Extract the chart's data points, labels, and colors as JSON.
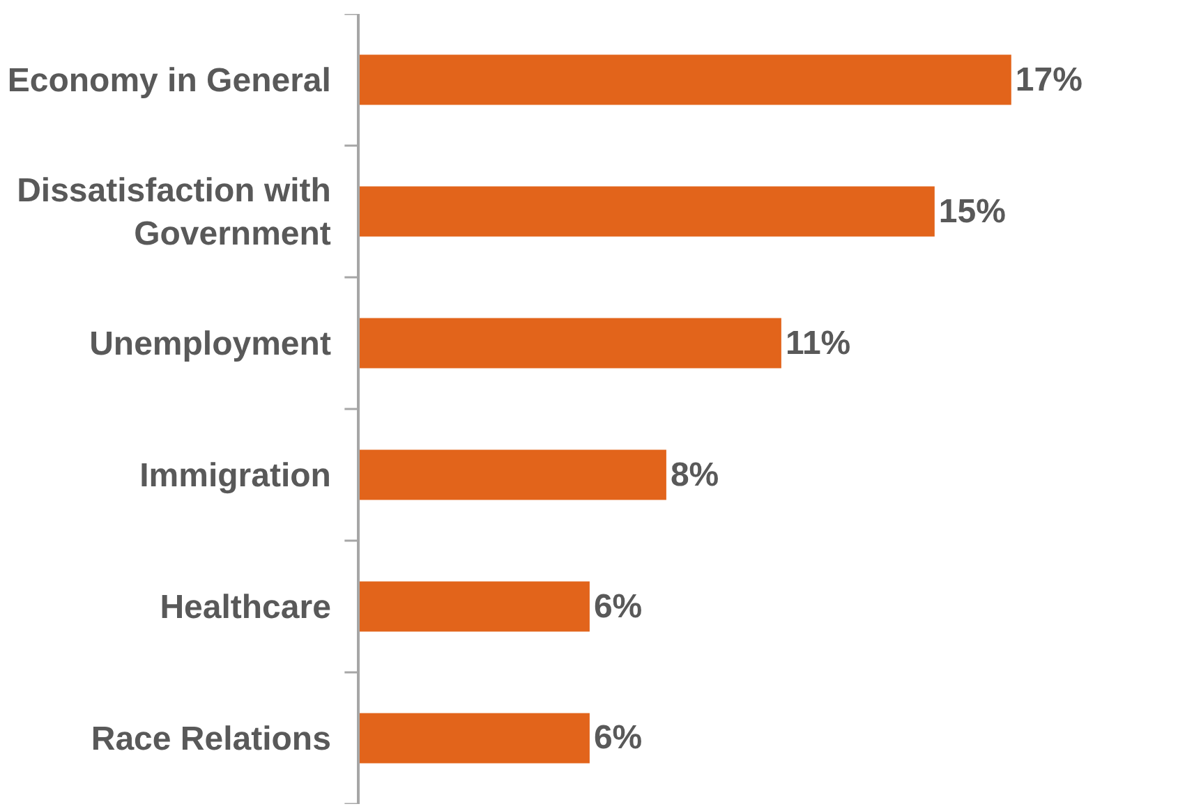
{
  "chart_data": {
    "type": "bar",
    "orientation": "horizontal",
    "categories": [
      "Economy in General",
      "Dissatisfaction with Government",
      "Unemployment",
      "Immigration",
      "Healthcare",
      "Race Relations"
    ],
    "values": [
      17,
      15,
      11,
      8,
      6,
      6
    ],
    "value_labels": [
      "17%",
      "15%",
      "11%",
      "8%",
      "6%",
      "6%"
    ],
    "color": "#e2641b",
    "tick_labels": "y",
    "legend": false
  }
}
